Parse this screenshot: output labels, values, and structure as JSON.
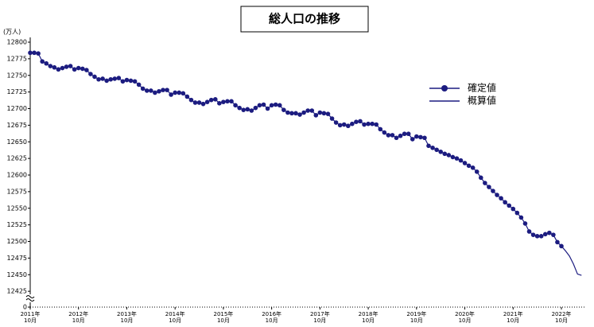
{
  "chart_data": {
    "type": "line",
    "title": "総人口の推移",
    "y_unit": "(万人)",
    "categories": [
      "2011年\n10月",
      null,
      null,
      null,
      null,
      null,
      null,
      null,
      null,
      null,
      null,
      null,
      "2012年\n10月",
      null,
      null,
      null,
      null,
      null,
      null,
      null,
      null,
      null,
      null,
      null,
      "2013年\n10月",
      null,
      null,
      null,
      null,
      null,
      null,
      null,
      null,
      null,
      null,
      null,
      "2014年\n10月",
      null,
      null,
      null,
      null,
      null,
      null,
      null,
      null,
      null,
      null,
      null,
      "2015年\n10月",
      null,
      null,
      null,
      null,
      null,
      null,
      null,
      null,
      null,
      null,
      null,
      "2016年\n10月",
      null,
      null,
      null,
      null,
      null,
      null,
      null,
      null,
      null,
      null,
      null,
      "2017年\n10月",
      null,
      null,
      null,
      null,
      null,
      null,
      null,
      null,
      null,
      null,
      null,
      "2018年\n10月",
      null,
      null,
      null,
      null,
      null,
      null,
      null,
      null,
      null,
      null,
      null,
      "2019年\n10月",
      null,
      null,
      null,
      null,
      null,
      null,
      null,
      null,
      null,
      null,
      null,
      "2020年\n10月",
      null,
      null,
      null,
      null,
      null,
      null,
      null,
      null,
      null,
      null,
      null,
      "2021年\n10月",
      null,
      null,
      null,
      null,
      null,
      null,
      null,
      null,
      null,
      null,
      null,
      "2022年\n10月",
      null,
      null,
      null,
      null,
      null
    ],
    "series": [
      {
        "name": "確定値",
        "color": "#1c1c80",
        "marker": true,
        "values": [
          12784,
          12784,
          12783,
          12771,
          12768,
          12764,
          12762,
          12759,
          12761,
          12763,
          12764,
          12759,
          12761,
          12760,
          12758,
          12752,
          12748,
          12744,
          12745,
          12742,
          12744,
          12745,
          12746,
          12741,
          12743,
          12742,
          12741,
          12736,
          12730,
          12727,
          12727,
          12724,
          12726,
          12728,
          12728,
          12721,
          12724,
          12724,
          12723,
          12718,
          12713,
          12709,
          12709,
          12707,
          12710,
          12713,
          12714,
          12708,
          12710,
          12711,
          12711,
          12705,
          12701,
          12698,
          12699,
          12697,
          12701,
          12705,
          12706,
          12700,
          12705,
          12706,
          12705,
          12698,
          12694,
          12693,
          12693,
          12691,
          12694,
          12697,
          12697,
          12690,
          12694,
          12693,
          12692,
          12685,
          12679,
          12675,
          12676,
          12674,
          12677,
          12680,
          12681,
          12676,
          12677,
          12677,
          12676,
          12669,
          12664,
          12660,
          12660,
          12656,
          12659,
          12662,
          12662,
          12654,
          12658,
          12657,
          12656,
          12644,
          12641,
          12638,
          12635,
          12632,
          12630,
          12627,
          12625,
          12622,
          12618,
          12614,
          12611,
          12605,
          12596,
          12588,
          12582,
          12576,
          12570,
          12565,
          12559,
          12554,
          12549,
          12543,
          12536,
          12527,
          12515,
          12510,
          12508,
          12508,
          12511,
          12513,
          12510,
          12499,
          12493,
          null,
          null,
          null,
          null,
          null
        ]
      },
      {
        "name": "概算値",
        "color": "#1c1c80",
        "marker": false,
        "values": [
          null,
          null,
          null,
          null,
          null,
          null,
          null,
          null,
          null,
          null,
          null,
          null,
          null,
          null,
          null,
          null,
          null,
          null,
          null,
          null,
          null,
          null,
          null,
          null,
          null,
          null,
          null,
          null,
          null,
          null,
          null,
          null,
          null,
          null,
          null,
          null,
          null,
          null,
          null,
          null,
          null,
          null,
          null,
          null,
          null,
          null,
          null,
          null,
          null,
          null,
          null,
          null,
          null,
          null,
          null,
          null,
          null,
          null,
          null,
          null,
          null,
          null,
          null,
          null,
          null,
          null,
          null,
          null,
          null,
          null,
          null,
          null,
          null,
          null,
          null,
          null,
          null,
          null,
          null,
          null,
          null,
          null,
          null,
          null,
          null,
          null,
          null,
          null,
          null,
          null,
          null,
          null,
          null,
          null,
          null,
          null,
          null,
          null,
          null,
          null,
          null,
          null,
          null,
          null,
          null,
          null,
          null,
          null,
          null,
          null,
          null,
          null,
          null,
          null,
          null,
          null,
          null,
          null,
          null,
          null,
          null,
          null,
          null,
          null,
          null,
          null,
          null,
          null,
          null,
          null,
          null,
          null,
          12493,
          12486,
          12478,
          12466,
          12451,
          12449
        ]
      }
    ],
    "ylim": [
      12400,
      12800
    ],
    "yticks": [
      0,
      12425,
      12450,
      12475,
      12500,
      12525,
      12550,
      12575,
      12600,
      12625,
      12650,
      12675,
      12700,
      12725,
      12750,
      12775,
      12800
    ],
    "axis_break": true,
    "grid": false,
    "legend": "right"
  }
}
